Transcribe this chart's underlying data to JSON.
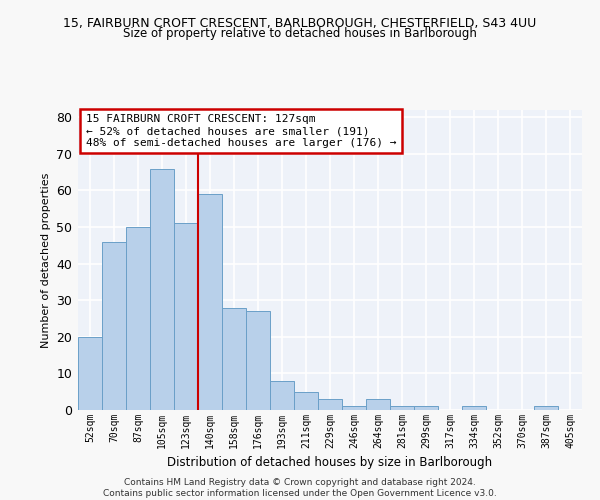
{
  "title_line1": "15, FAIRBURN CROFT CRESCENT, BARLBOROUGH, CHESTERFIELD, S43 4UU",
  "title_line2": "Size of property relative to detached houses in Barlborough",
  "xlabel": "Distribution of detached houses by size in Barlborough",
  "ylabel": "Number of detached properties",
  "categories": [
    "52sqm",
    "70sqm",
    "87sqm",
    "105sqm",
    "123sqm",
    "140sqm",
    "158sqm",
    "176sqm",
    "193sqm",
    "211sqm",
    "229sqm",
    "246sqm",
    "264sqm",
    "281sqm",
    "299sqm",
    "317sqm",
    "334sqm",
    "352sqm",
    "370sqm",
    "387sqm",
    "405sqm"
  ],
  "values": [
    20,
    46,
    50,
    66,
    51,
    59,
    28,
    27,
    8,
    5,
    3,
    1,
    3,
    1,
    1,
    0,
    1,
    0,
    0,
    1,
    0
  ],
  "bar_color": "#b8d0ea",
  "bar_edge_color": "#6a9fc8",
  "vline_after_index": 4,
  "vline_color": "#cc0000",
  "annotation_title": "15 FAIRBURN CROFT CRESCENT: 127sqm",
  "annotation_line2": "← 52% of detached houses are smaller (191)",
  "annotation_line3": "48% of semi-detached houses are larger (176) →",
  "ylim": [
    0,
    82
  ],
  "yticks": [
    0,
    10,
    20,
    30,
    40,
    50,
    60,
    70,
    80
  ],
  "bg_color": "#eef2f9",
  "grid_color": "#ffffff",
  "fig_bg_color": "#f8f8f8",
  "footer_line1": "Contains HM Land Registry data © Crown copyright and database right 2024.",
  "footer_line2": "Contains public sector information licensed under the Open Government Licence v3.0."
}
